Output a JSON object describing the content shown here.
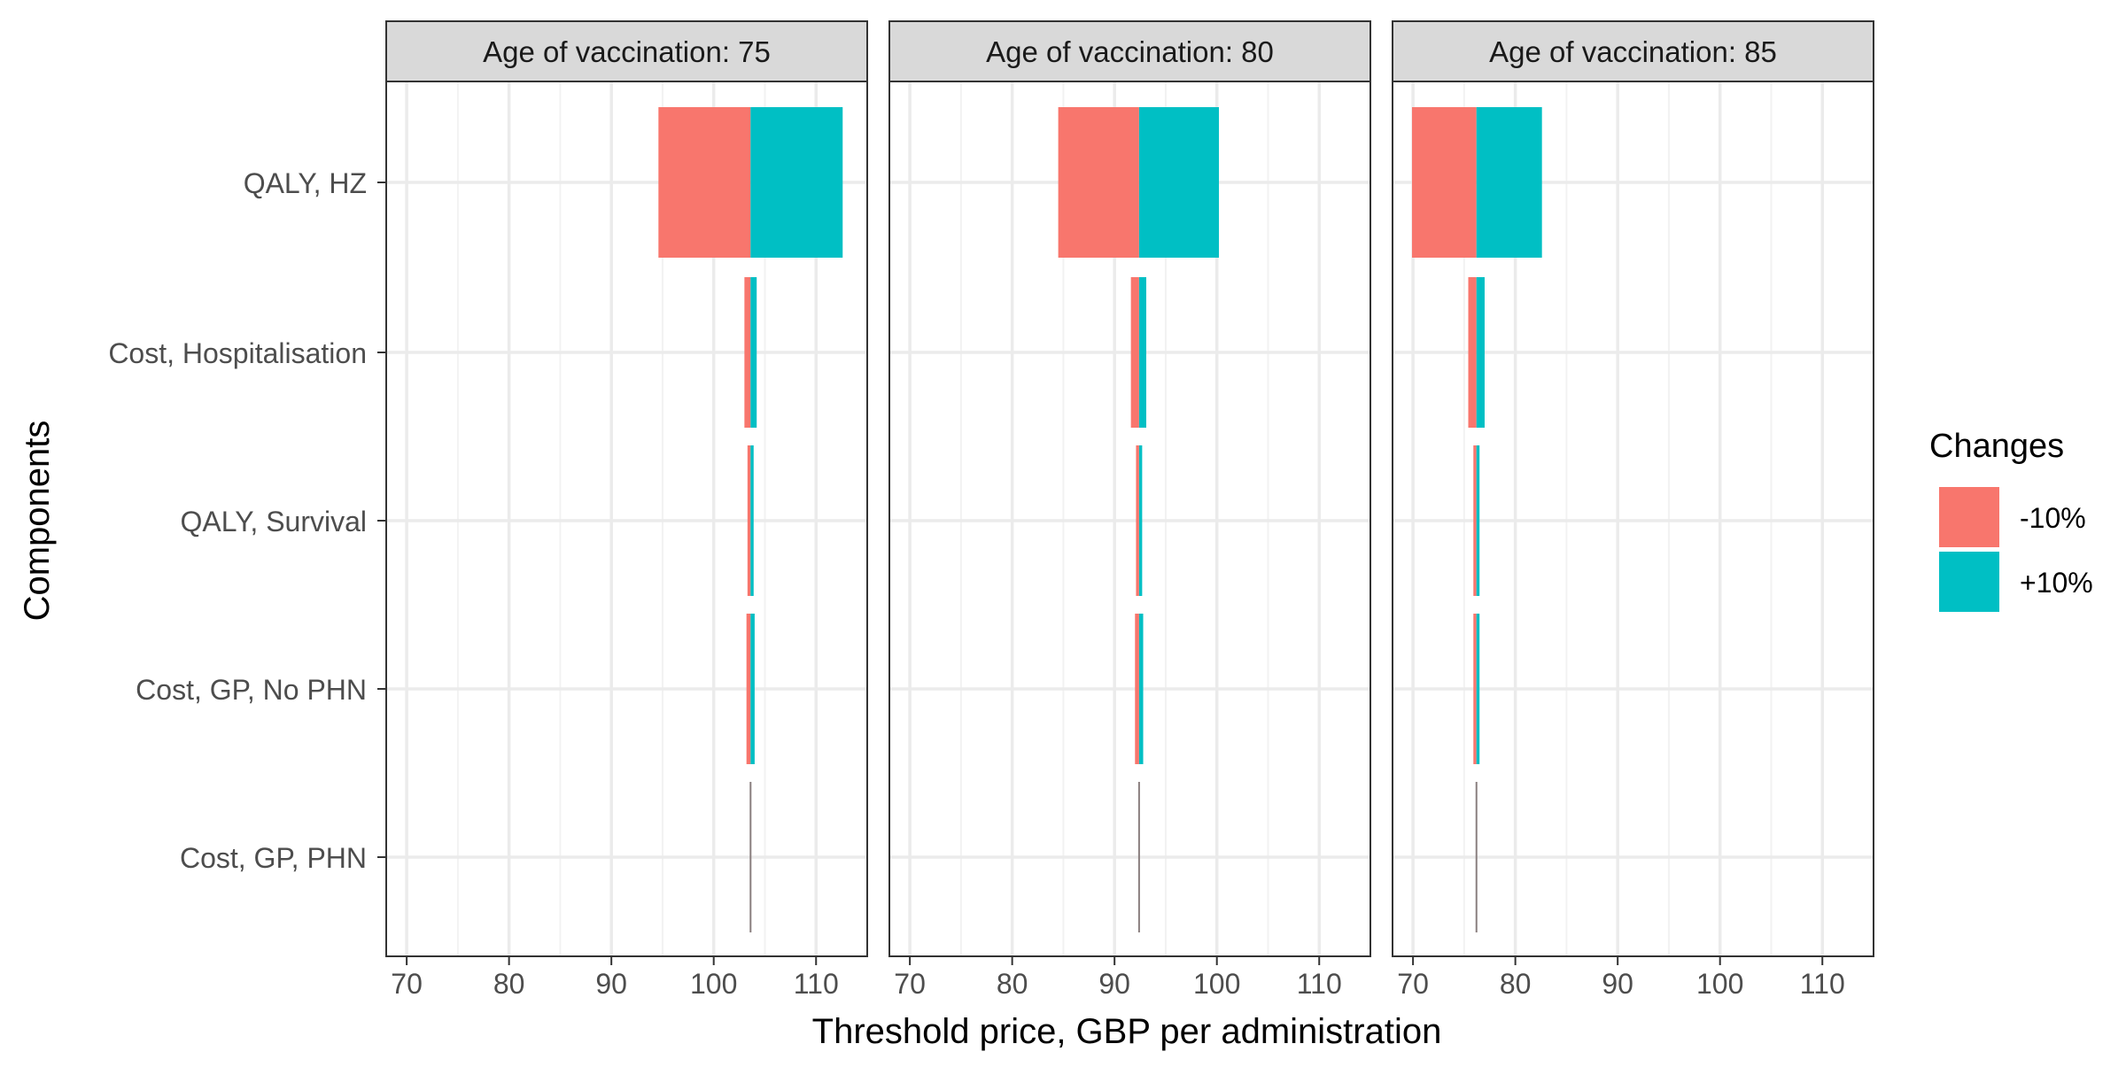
{
  "chart_data": {
    "type": "bar",
    "orientation": "horizontal",
    "style": "tornado",
    "xlabel": "Threshold price, GBP per administration",
    "ylabel": "Components",
    "xlim": [
      68,
      115
    ],
    "x_ticks": [
      70,
      80,
      90,
      100,
      110
    ],
    "grid": true,
    "legend": {
      "title": "Changes",
      "position": "right",
      "entries": [
        {
          "label": "-10%",
          "color": "#F8766D"
        },
        {
          "label": "+10%",
          "color": "#00BFC4"
        }
      ]
    },
    "categories": [
      "QALY, HZ",
      "Cost, Hospitalisation",
      "QALY, Survival",
      "Cost, GP, No PHN",
      "Cost, GP, PHN"
    ],
    "facets": [
      {
        "label": "Age of vaccination: 75",
        "base": 103.6,
        "series": [
          {
            "name": "-10%",
            "values": [
              94.6,
              103.0,
              103.3,
              103.2,
              103.5
            ]
          },
          {
            "name": "+10%",
            "values": [
              112.6,
              104.2,
              103.9,
              104.0,
              103.7
            ]
          }
        ]
      },
      {
        "label": "Age of vaccination: 80",
        "base": 92.4,
        "series": [
          {
            "name": "-10%",
            "values": [
              84.5,
              91.6,
              92.1,
              92.0,
              92.35
            ]
          },
          {
            "name": "+10%",
            "values": [
              100.2,
              93.1,
              92.7,
              92.8,
              92.45
            ]
          }
        ]
      },
      {
        "label": "Age of vaccination: 85",
        "base": 76.2,
        "series": [
          {
            "name": "-10%",
            "values": [
              69.9,
              75.4,
              75.9,
              75.9,
              76.1
            ]
          },
          {
            "name": "+10%",
            "values": [
              82.6,
              77.0,
              76.5,
              76.5,
              76.3
            ]
          }
        ]
      }
    ]
  }
}
